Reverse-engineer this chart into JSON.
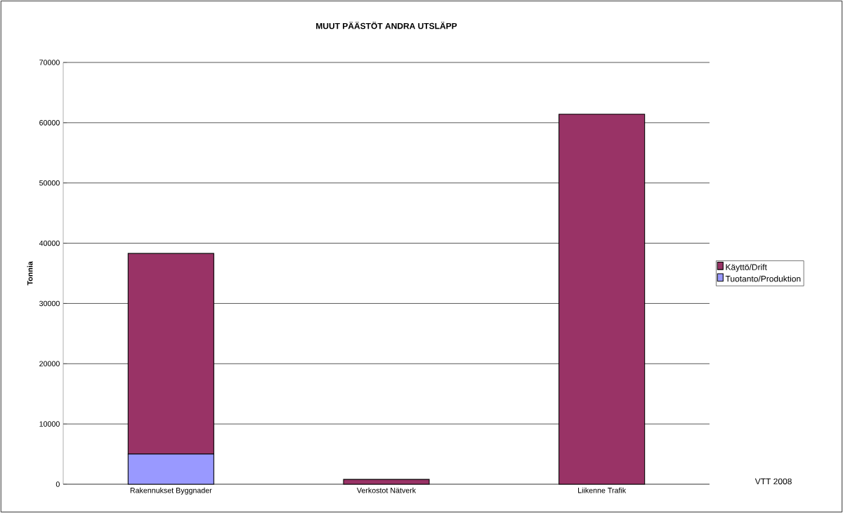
{
  "chart_data": {
    "type": "bar",
    "title": "MUUT PÄÄSTÖT ANDRA UTSLÄPP",
    "ylabel": "Tonnia",
    "categories": [
      "Rakennukset Byggnader",
      "Verkostot Nätverk",
      "Liikenne Trafik"
    ],
    "stacked": true,
    "series": [
      {
        "name": "Tuotanto/Produktion",
        "color": "#9999ff",
        "values": [
          5000,
          0,
          0
        ]
      },
      {
        "name": "Käyttö/Drift",
        "color": "#993366",
        "values": [
          33300,
          800,
          61400
        ]
      }
    ],
    "ylim": [
      0,
      70000
    ],
    "yticks": [
      0,
      10000,
      20000,
      30000,
      40000,
      50000,
      60000,
      70000
    ],
    "grid": "y",
    "legend": "right",
    "annotations": [
      "VTT 2008"
    ]
  }
}
